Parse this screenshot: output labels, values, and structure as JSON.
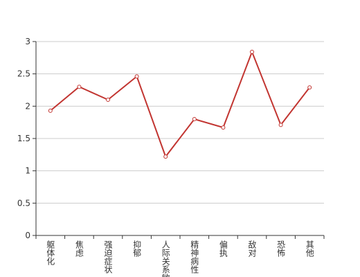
{
  "chart_data": {
    "type": "line",
    "categories": [
      "躯体化",
      "焦虑",
      "强迫症状",
      "抑郁",
      "人际关系敏感",
      "精神病性",
      "偏执",
      "敌对",
      "恐怖",
      "其他"
    ],
    "values": [
      1.93,
      2.3,
      2.1,
      2.46,
      1.22,
      1.8,
      1.67,
      2.84,
      1.71,
      2.29
    ],
    "color": "#c23531",
    "ylim": [
      0,
      3
    ],
    "yticks": [
      0,
      0.5,
      1,
      1.5,
      2,
      2.5,
      3
    ],
    "grid": true
  }
}
